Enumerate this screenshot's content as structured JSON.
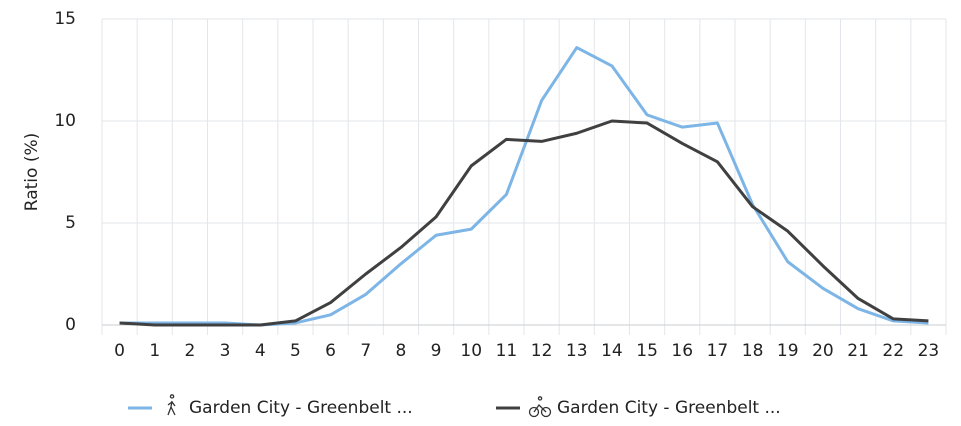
{
  "chart_data": {
    "type": "line",
    "y_label": "Ratio (%)",
    "categories": [
      "0",
      "1",
      "2",
      "3",
      "4",
      "5",
      "6",
      "7",
      "8",
      "9",
      "10",
      "11",
      "12",
      "13",
      "14",
      "15",
      "16",
      "17",
      "18",
      "19",
      "20",
      "21",
      "22",
      "23"
    ],
    "series": [
      {
        "name": "Garden City - Greenbelt ...",
        "color": "#7cb5e6",
        "values": [
          0.1,
          0.1,
          0.1,
          0.1,
          0,
          0.1,
          0.5,
          1.5,
          3.0,
          4.4,
          4.7,
          6.4,
          11.0,
          13.6,
          12.7,
          10.3,
          9.7,
          9.9,
          5.9,
          3.1,
          1.8,
          0.8,
          0.2,
          0.1
        ]
      },
      {
        "name": "Garden City - Greenbelt ...",
        "color": "#404040",
        "values": [
          0.1,
          0,
          0,
          0,
          0,
          0.2,
          1.1,
          2.5,
          3.8,
          5.3,
          7.8,
          9.1,
          9.0,
          9.4,
          10.0,
          9.9,
          8.9,
          8.0,
          5.8,
          4.6,
          2.9,
          1.3,
          0.3,
          0.2
        ]
      }
    ],
    "ylim": [
      0,
      15
    ],
    "yticks": [
      0,
      5,
      10,
      15
    ],
    "grid": true
  }
}
